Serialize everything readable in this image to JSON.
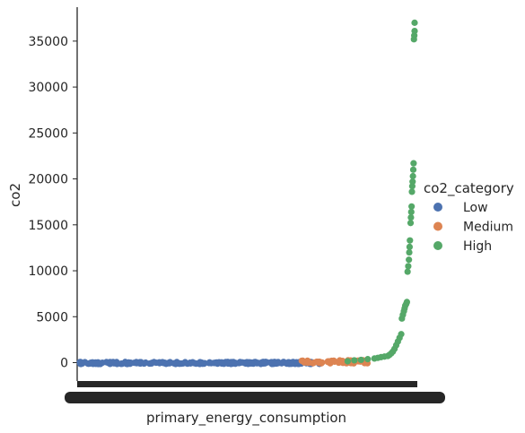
{
  "chart_data": {
    "type": "scatter",
    "title": "",
    "xlabel": "primary_energy_consumption",
    "ylabel": "co2",
    "x_is_categorical": true,
    "y_ticks": [
      0,
      5000,
      10000,
      15000,
      20000,
      25000,
      30000,
      35000
    ],
    "y_tick_labels": [
      "0",
      "5000",
      "10000",
      "15000",
      "20000",
      "25000",
      "30000",
      "35000"
    ],
    "ylim": [
      -2000,
      38500
    ],
    "grid": false,
    "legend": {
      "title": "co2_category",
      "placement": "center-right",
      "entries": [
        "Low",
        "Medium",
        "High"
      ]
    },
    "series": [
      {
        "name": "Low",
        "color": "#4c72b0",
        "x_range": [
          0.0,
          0.72
        ],
        "y_range": [
          -150,
          80
        ],
        "count": 260
      },
      {
        "name": "Medium",
        "color": "#dd8452",
        "x_range": [
          0.66,
          0.86
        ],
        "y_range": [
          -80,
          260
        ],
        "count": 70
      },
      {
        "name": "High",
        "color": "#55a868",
        "points": [
          [
            0.8,
            150
          ],
          [
            0.82,
            250
          ],
          [
            0.84,
            300
          ],
          [
            0.86,
            380
          ],
          [
            0.88,
            450
          ],
          [
            0.89,
            520
          ],
          [
            0.9,
            600
          ],
          [
            0.91,
            660
          ],
          [
            0.92,
            720
          ],
          [
            0.925,
            850
          ],
          [
            0.93,
            1000
          ],
          [
            0.935,
            1200
          ],
          [
            0.94,
            1500
          ],
          [
            0.945,
            1900
          ],
          [
            0.95,
            2300
          ],
          [
            0.955,
            2700
          ],
          [
            0.96,
            3100
          ],
          [
            0.962,
            4800
          ],
          [
            0.965,
            5200
          ],
          [
            0.968,
            5600
          ],
          [
            0.97,
            5900
          ],
          [
            0.972,
            6200
          ],
          [
            0.975,
            6400
          ],
          [
            0.977,
            6600
          ],
          [
            0.979,
            9900
          ],
          [
            0.981,
            10500
          ],
          [
            0.983,
            11200
          ],
          [
            0.984,
            12000
          ],
          [
            0.985,
            12600
          ],
          [
            0.986,
            13300
          ],
          [
            0.988,
            15200
          ],
          [
            0.989,
            15800
          ],
          [
            0.99,
            16400
          ],
          [
            0.991,
            17000
          ],
          [
            0.992,
            18600
          ],
          [
            0.993,
            19200
          ],
          [
            0.994,
            19700
          ],
          [
            0.995,
            20300
          ],
          [
            0.996,
            21000
          ],
          [
            0.997,
            21700
          ],
          [
            0.998,
            35200
          ],
          [
            0.999,
            35600
          ],
          [
            1.0,
            36100
          ],
          [
            1.0,
            37000
          ]
        ]
      }
    ]
  }
}
